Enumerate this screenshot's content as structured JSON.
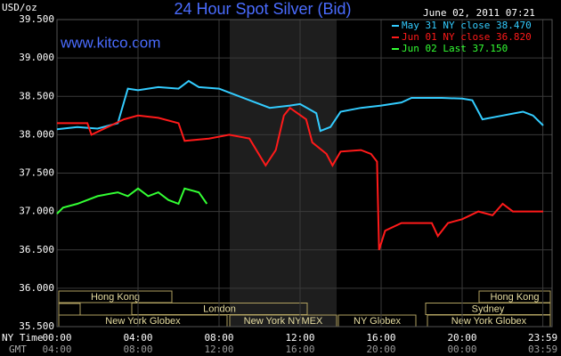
{
  "chart_data": {
    "type": "line",
    "title": "24 Hour Spot Silver (Bid)",
    "y_label": "USD/oz",
    "watermark": "www.kitco.com",
    "timestamp": "June 02, 2011 07:21",
    "x_label": "NY Time",
    "x2_label": "GMT",
    "xlim": [
      0,
      24
    ],
    "ylim": [
      35.5,
      39.5
    ],
    "yticks": [
      {
        "value": 35.5,
        "label": "35.500"
      },
      {
        "value": 36,
        "label": "36.000"
      },
      {
        "value": 36.5,
        "label": "36.500"
      },
      {
        "value": 37,
        "label": "37.000"
      },
      {
        "value": 37.5,
        "label": "37.500"
      },
      {
        "value": 38,
        "label": "38.000"
      },
      {
        "value": 38.5,
        "label": "38.500"
      },
      {
        "value": 39,
        "label": "39.000"
      },
      {
        "value": 39.5,
        "label": "39.500"
      }
    ],
    "xticks": [
      {
        "value": 0,
        "label": "00:00"
      },
      {
        "value": 4,
        "label": "04:00"
      },
      {
        "value": 8,
        "label": "08:00"
      },
      {
        "value": 12,
        "label": "12:00"
      },
      {
        "value": 16,
        "label": "16:00"
      },
      {
        "value": 20,
        "label": "20:00"
      },
      {
        "value": 23.983,
        "label": "23:59"
      }
    ],
    "x2ticks": [
      {
        "value": 0,
        "label": "04:00"
      },
      {
        "value": 4,
        "label": "08:00"
      },
      {
        "value": 8,
        "label": "12:00"
      },
      {
        "value": 12,
        "label": "16:00"
      },
      {
        "value": 16,
        "label": "20:00"
      },
      {
        "value": 20,
        "label": "00:00"
      },
      {
        "value": 23.983,
        "label": "03:59"
      }
    ],
    "grid": true,
    "sessions": [
      "Hong Kong",
      "London",
      "New York Globex",
      "New York NYMEX",
      "NY Globex",
      "Sydney",
      "Hong Kong",
      "New York Globex"
    ],
    "series": [
      {
        "name": "May 31 NY close 38.470",
        "color": "#33ccff",
        "x": [
          0,
          1,
          2,
          3,
          3.5,
          4,
          5,
          6,
          6.5,
          7,
          8,
          9,
          10.5,
          11.5,
          12,
          12.8,
          13,
          13.5,
          14,
          15,
          16,
          17,
          17.5,
          19,
          20,
          20.5,
          21,
          22,
          23,
          23.5,
          24
        ],
        "values": [
          38.07,
          38.1,
          38.08,
          38.15,
          38.6,
          38.58,
          38.62,
          38.6,
          38.7,
          38.62,
          38.6,
          38.5,
          38.35,
          38.38,
          38.4,
          38.28,
          38.05,
          38.1,
          38.3,
          38.35,
          38.38,
          38.42,
          38.48,
          38.48,
          38.47,
          38.45,
          38.2,
          38.25,
          38.3,
          38.25,
          38.12
        ]
      },
      {
        "name": "Jun 01 NY close 36.820",
        "color": "#ff1a1a",
        "x": [
          0,
          1.5,
          1.7,
          2.5,
          3.3,
          4,
          5,
          6,
          6.3,
          7.5,
          8.5,
          9.5,
          10.3,
          10.8,
          11.2,
          11.5,
          12.3,
          12.6,
          13.3,
          13.6,
          14,
          15,
          15.5,
          15.8,
          15.9,
          16.2,
          17,
          18.5,
          18.8,
          19.3,
          20,
          20.8,
          21.5,
          22,
          22.5,
          24
        ],
        "values": [
          38.15,
          38.15,
          38.0,
          38.1,
          38.2,
          38.25,
          38.22,
          38.15,
          37.92,
          37.95,
          38.0,
          37.95,
          37.6,
          37.8,
          38.25,
          38.35,
          38.2,
          37.9,
          37.75,
          37.6,
          37.78,
          37.8,
          37.75,
          37.65,
          36.5,
          36.75,
          36.85,
          36.85,
          36.68,
          36.85,
          36.9,
          37.0,
          36.95,
          37.1,
          37.0,
          37.0
        ]
      },
      {
        "name": "Jun 02 Last 37.150",
        "color": "#33ff33",
        "x": [
          0,
          0.3,
          1,
          2,
          3,
          3.5,
          4,
          4.5,
          5,
          5.5,
          6,
          6.3,
          7,
          7.4
        ],
        "values": [
          36.97,
          37.05,
          37.1,
          37.2,
          37.25,
          37.2,
          37.3,
          37.2,
          37.25,
          37.15,
          37.1,
          37.3,
          37.25,
          37.1
        ]
      }
    ]
  }
}
